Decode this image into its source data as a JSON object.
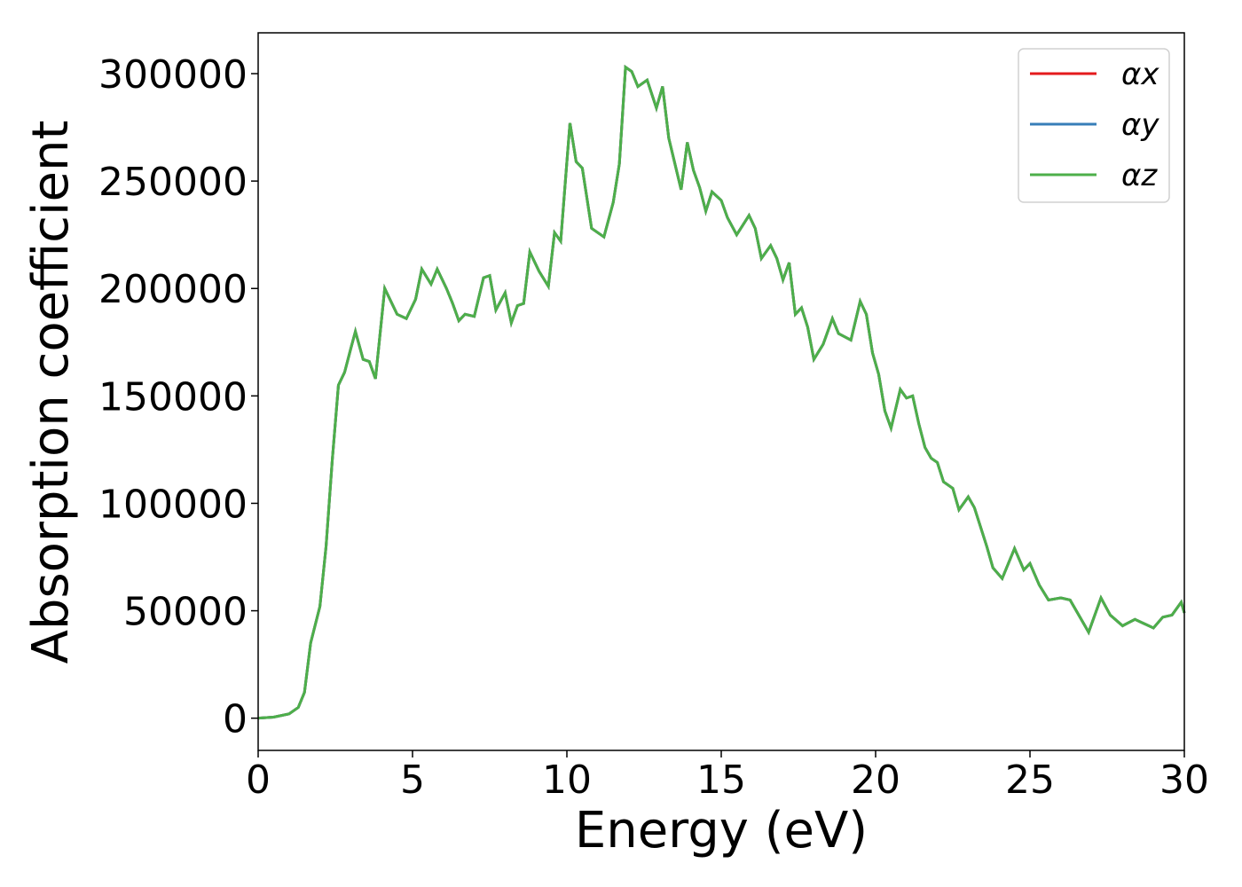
{
  "chart_data": {
    "type": "line",
    "xlabel": "Energy (eV)",
    "ylabel": "Absorption coefficient",
    "x": [
      0,
      0.5,
      1.0,
      1.3,
      1.5,
      1.7,
      2.0,
      2.2,
      2.4,
      2.6,
      2.8,
      3.0,
      3.15,
      3.4,
      3.6,
      3.8,
      4.1,
      4.5,
      4.8,
      5.1,
      5.3,
      5.6,
      5.8,
      6.1,
      6.3,
      6.5,
      6.7,
      7.0,
      7.3,
      7.5,
      7.7,
      8.0,
      8.2,
      8.4,
      8.6,
      8.8,
      9.1,
      9.4,
      9.6,
      9.8,
      10.0,
      10.1,
      10.3,
      10.5,
      10.8,
      11.2,
      11.5,
      11.7,
      11.9,
      12.1,
      12.3,
      12.6,
      12.9,
      13.1,
      13.3,
      13.5,
      13.7,
      13.9,
      14.1,
      14.3,
      14.5,
      14.7,
      15.0,
      15.2,
      15.5,
      15.9,
      16.1,
      16.3,
      16.6,
      16.8,
      17.0,
      17.2,
      17.4,
      17.6,
      17.8,
      18.0,
      18.3,
      18.6,
      18.8,
      19.2,
      19.5,
      19.7,
      19.9,
      20.1,
      20.3,
      20.5,
      20.8,
      21.0,
      21.2,
      21.4,
      21.6,
      21.8,
      22.0,
      22.2,
      22.5,
      22.7,
      23.0,
      23.2,
      23.6,
      23.8,
      24.1,
      24.5,
      24.8,
      25.0,
      25.3,
      25.6,
      26.0,
      26.3,
      26.7,
      26.9,
      27.3,
      27.6,
      28.0,
      28.4,
      28.7,
      29.0,
      29.3,
      29.6,
      29.9,
      30.0
    ],
    "series": [
      {
        "name": "αx",
        "color": "#e41a1c",
        "values": [
          0,
          500,
          2000,
          5000,
          12000,
          35000,
          52000,
          80000,
          120000,
          155000,
          161000,
          172000,
          180000,
          167000,
          166000,
          158000,
          200000,
          188000,
          186000,
          195000,
          209000,
          202000,
          209000,
          200000,
          193000,
          185000,
          188000,
          187000,
          205000,
          206000,
          190000,
          198000,
          184000,
          192000,
          193000,
          217000,
          208000,
          201000,
          226000,
          222000,
          259000,
          277000,
          259000,
          256000,
          228000,
          224000,
          240000,
          258000,
          303000,
          301000,
          294000,
          297000,
          284000,
          294000,
          270000,
          258000,
          246000,
          268000,
          255000,
          247000,
          236000,
          245000,
          241000,
          233000,
          225000,
          234000,
          228000,
          214000,
          220000,
          214000,
          204000,
          212000,
          188000,
          191000,
          182000,
          167000,
          174000,
          186000,
          179000,
          176000,
          194000,
          188000,
          170000,
          160000,
          143000,
          135000,
          153000,
          149000,
          150000,
          137000,
          126000,
          121000,
          119000,
          110000,
          107000,
          97000,
          103000,
          98000,
          80000,
          70000,
          65000,
          79000,
          69000,
          72000,
          62000,
          55000,
          56000,
          55000,
          45000,
          40000,
          56000,
          48000,
          43000,
          46000,
          44000,
          42000,
          47000,
          48000,
          54000,
          49000
        ]
      },
      {
        "name": "αy",
        "color": "#377eb8",
        "values": [
          0,
          500,
          2000,
          5000,
          12000,
          35000,
          52000,
          80000,
          120000,
          155000,
          161000,
          172000,
          180000,
          167000,
          166000,
          158000,
          200000,
          188000,
          186000,
          195000,
          209000,
          202000,
          209000,
          200000,
          193000,
          185000,
          188000,
          187000,
          205000,
          206000,
          190000,
          198000,
          184000,
          192000,
          193000,
          217000,
          208000,
          201000,
          226000,
          222000,
          259000,
          277000,
          259000,
          256000,
          228000,
          224000,
          240000,
          258000,
          303000,
          301000,
          294000,
          297000,
          284000,
          294000,
          270000,
          258000,
          246000,
          268000,
          255000,
          247000,
          236000,
          245000,
          241000,
          233000,
          225000,
          234000,
          228000,
          214000,
          220000,
          214000,
          204000,
          212000,
          188000,
          191000,
          182000,
          167000,
          174000,
          186000,
          179000,
          176000,
          194000,
          188000,
          170000,
          160000,
          143000,
          135000,
          153000,
          149000,
          150000,
          137000,
          126000,
          121000,
          119000,
          110000,
          107000,
          97000,
          103000,
          98000,
          80000,
          70000,
          65000,
          79000,
          69000,
          72000,
          62000,
          55000,
          56000,
          55000,
          45000,
          40000,
          56000,
          48000,
          43000,
          46000,
          44000,
          42000,
          47000,
          48000,
          54000,
          49000
        ]
      },
      {
        "name": "αz",
        "color": "#4daf4a",
        "values": [
          0,
          500,
          2000,
          5000,
          12000,
          35000,
          52000,
          80000,
          120000,
          155000,
          161000,
          172000,
          180000,
          167000,
          166000,
          158000,
          200000,
          188000,
          186000,
          195000,
          209000,
          202000,
          209000,
          200000,
          193000,
          185000,
          188000,
          187000,
          205000,
          206000,
          190000,
          198000,
          184000,
          192000,
          193000,
          217000,
          208000,
          201000,
          226000,
          222000,
          259000,
          277000,
          259000,
          256000,
          228000,
          224000,
          240000,
          258000,
          303000,
          301000,
          294000,
          297000,
          284000,
          294000,
          270000,
          258000,
          246000,
          268000,
          255000,
          247000,
          236000,
          245000,
          241000,
          233000,
          225000,
          234000,
          228000,
          214000,
          220000,
          214000,
          204000,
          212000,
          188000,
          191000,
          182000,
          167000,
          174000,
          186000,
          179000,
          176000,
          194000,
          188000,
          170000,
          160000,
          143000,
          135000,
          153000,
          149000,
          150000,
          137000,
          126000,
          121000,
          119000,
          110000,
          107000,
          97000,
          103000,
          98000,
          80000,
          70000,
          65000,
          79000,
          69000,
          72000,
          62000,
          55000,
          56000,
          55000,
          45000,
          40000,
          56000,
          48000,
          43000,
          46000,
          44000,
          42000,
          47000,
          48000,
          54000,
          49000
        ]
      }
    ],
    "xlim": [
      0,
      30
    ],
    "xticks": [
      0,
      5,
      10,
      15,
      20,
      25,
      30
    ],
    "ylim": [
      -15000,
      319000
    ],
    "yticks": [
      0,
      50000,
      100000,
      150000,
      200000,
      250000,
      300000
    ],
    "legend": "upper right",
    "grid": false
  }
}
